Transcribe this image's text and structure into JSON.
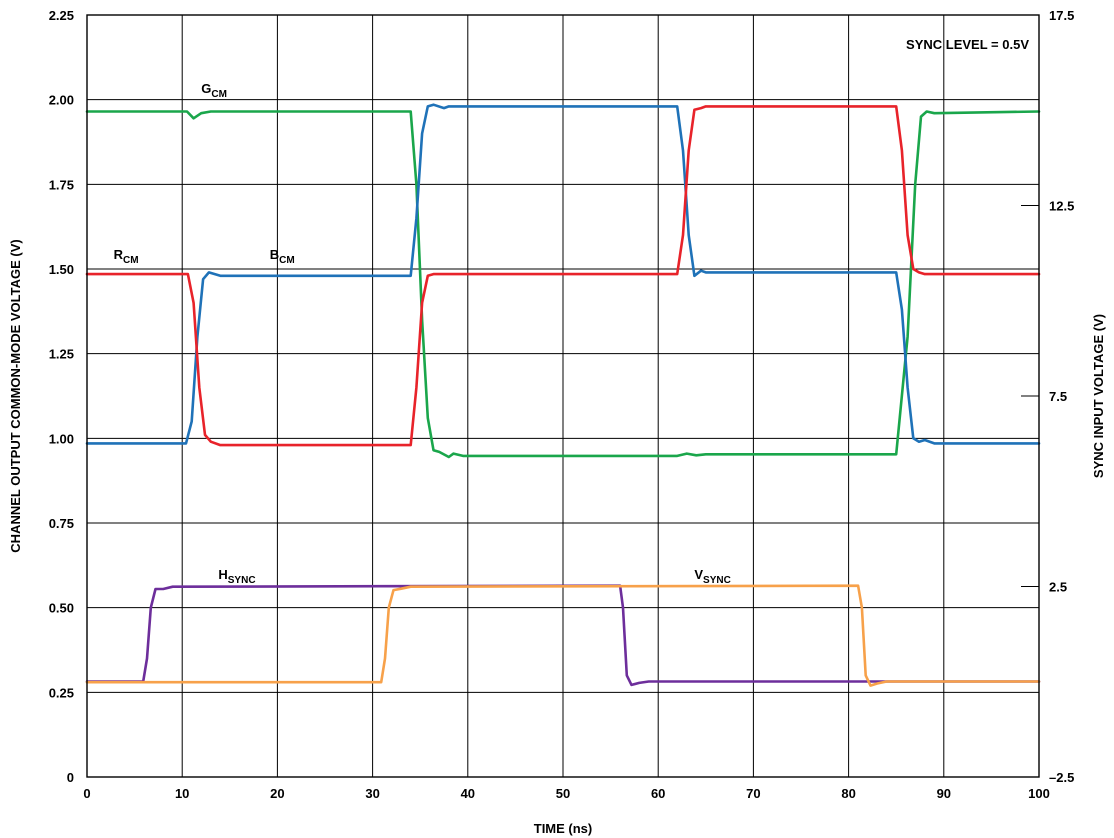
{
  "chart_data": {
    "type": "line",
    "xlabel": "TIME (ns)",
    "ylabel": "CHANNEL OUTPUT COMMON-MODE VOLTAGE (V)",
    "y2label": "SYNC INPUT VOLTAGE (V)",
    "xlim": [
      0,
      100
    ],
    "ylim": [
      0,
      2.25
    ],
    "y2lim": [
      -2.5,
      17.5
    ],
    "x_ticks": [
      "0",
      "10",
      "20",
      "30",
      "40",
      "50",
      "60",
      "70",
      "80",
      "90",
      "100"
    ],
    "y_ticks": [
      "0",
      "0.25",
      "0.50",
      "0.75",
      "1.00",
      "1.25",
      "1.50",
      "1.75",
      "2.00",
      "2.25"
    ],
    "y2_ticks": [
      "–2.5",
      "2.5",
      "7.5",
      "12.5",
      "17.5"
    ],
    "grid": true,
    "annotation": "SYNC LEVEL = 0.5V",
    "series": [
      {
        "name": "G",
        "subscript": "CM",
        "color": "#1aa64b",
        "label_at": [
          12,
          2.02
        ],
        "x": [
          0,
          10.5,
          11.2,
          12,
          13,
          34,
          34.6,
          35.2,
          35.8,
          36.4,
          37,
          38,
          38.5,
          39.5,
          40,
          62,
          63,
          64,
          65,
          85,
          86.2,
          87,
          87.6,
          88.2,
          89,
          100
        ],
        "y": [
          1.965,
          1.965,
          1.945,
          1.96,
          1.965,
          1.965,
          1.75,
          1.35,
          1.06,
          0.965,
          0.96,
          0.945,
          0.955,
          0.948,
          0.948,
          0.948,
          0.955,
          0.95,
          0.953,
          0.953,
          1.3,
          1.75,
          1.95,
          1.965,
          1.96,
          1.965
        ]
      },
      {
        "name": "B",
        "subscript": "CM",
        "color": "#1f72b8",
        "label_at": [
          19.2,
          1.53
        ],
        "x": [
          0,
          10.4,
          11.0,
          11.6,
          12.2,
          12.8,
          14,
          34,
          34.6,
          35.2,
          35.8,
          36.4,
          37.5,
          38,
          62,
          62.6,
          63.2,
          63.8,
          64.5,
          65,
          85,
          85.6,
          86.2,
          86.8,
          87.4,
          88,
          89,
          100
        ],
        "y": [
          0.985,
          0.985,
          1.05,
          1.3,
          1.47,
          1.49,
          1.48,
          1.48,
          1.65,
          1.9,
          1.98,
          1.985,
          1.975,
          1.98,
          1.98,
          1.85,
          1.6,
          1.48,
          1.495,
          1.49,
          1.49,
          1.38,
          1.15,
          1.0,
          0.99,
          0.995,
          0.985,
          0.985
        ]
      },
      {
        "name": "R",
        "subscript": "CM",
        "color": "#e8232a",
        "label_at": [
          2.8,
          1.53
        ],
        "x": [
          0,
          10.6,
          11.2,
          11.8,
          12.4,
          13,
          14,
          34,
          34.6,
          35.2,
          35.8,
          36.4,
          37.5,
          38,
          62,
          62.6,
          63.2,
          63.8,
          64.5,
          65,
          85,
          85.6,
          86.2,
          86.8,
          87.4,
          88,
          89,
          100
        ],
        "y": [
          1.485,
          1.485,
          1.4,
          1.15,
          1.01,
          0.99,
          0.98,
          0.98,
          1.15,
          1.4,
          1.48,
          1.485,
          1.485,
          1.485,
          1.485,
          1.6,
          1.85,
          1.97,
          1.975,
          1.98,
          1.98,
          1.85,
          1.6,
          1.5,
          1.49,
          1.485,
          1.485,
          1.485
        ]
      },
      {
        "name": "H",
        "subscript": "SYNC",
        "color": "#6d2e9b",
        "label_at": [
          13.8,
          0.585
        ],
        "x": [
          0,
          5.9,
          6.3,
          6.7,
          7.2,
          8,
          9,
          56,
          56.3,
          56.7,
          57.2,
          58,
          59,
          60,
          100
        ],
        "y": [
          0.282,
          0.282,
          0.35,
          0.5,
          0.555,
          0.555,
          0.562,
          0.565,
          0.5,
          0.3,
          0.272,
          0.278,
          0.282,
          0.282,
          0.282
        ]
      },
      {
        "name": "V",
        "subscript": "SYNC",
        "color": "#f7a14a",
        "label_at": [
          63.8,
          0.585
        ],
        "x": [
          0,
          30.9,
          31.3,
          31.7,
          32.2,
          33,
          34,
          81,
          81.4,
          81.8,
          82.3,
          83,
          84,
          100
        ],
        "y": [
          0.28,
          0.28,
          0.35,
          0.5,
          0.552,
          0.556,
          0.562,
          0.565,
          0.5,
          0.3,
          0.27,
          0.276,
          0.282,
          0.282
        ]
      }
    ]
  }
}
